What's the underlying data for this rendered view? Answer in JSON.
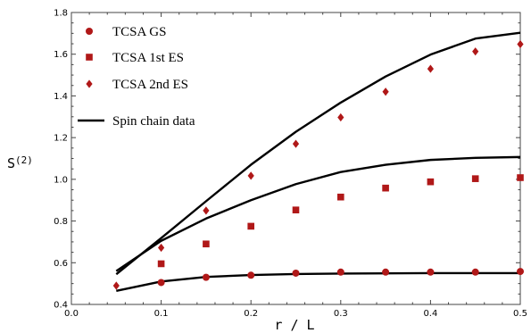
{
  "chart_data": {
    "type": "scatter",
    "xlabel": "r / L",
    "ylabel": "S",
    "ylabel_superscript": "(2)",
    "xlim": [
      0.0,
      0.5
    ],
    "ylim": [
      0.4,
      1.8
    ],
    "xticks": [
      "0.0",
      "0.1",
      "0.2",
      "0.3",
      "0.4",
      "0.5"
    ],
    "yticks": [
      "0.4",
      "0.6",
      "0.8",
      "1.0",
      "1.2",
      "1.4",
      "1.6",
      "1.8"
    ],
    "grid": false,
    "legend_position": "top-left",
    "colors": {
      "marker": "#b01818",
      "line": "#000000"
    },
    "series": [
      {
        "name": "TCSA GS",
        "kind": "markers",
        "marker": "circle",
        "x": [
          0.1,
          0.15,
          0.2,
          0.25,
          0.3,
          0.35,
          0.4,
          0.45,
          0.5
        ],
        "y": [
          0.505,
          0.53,
          0.54,
          0.55,
          0.555,
          0.555,
          0.555,
          0.555,
          0.558
        ]
      },
      {
        "name": "TCSA 1st ES",
        "kind": "markers",
        "marker": "square",
        "x": [
          0.1,
          0.15,
          0.2,
          0.25,
          0.3,
          0.35,
          0.4,
          0.45,
          0.5
        ],
        "y": [
          0.595,
          0.69,
          0.775,
          0.853,
          0.915,
          0.958,
          0.988,
          1.003,
          1.008
        ]
      },
      {
        "name": "TCSA 2nd ES",
        "kind": "markers",
        "marker": "diamond",
        "x": [
          0.05,
          0.1,
          0.15,
          0.2,
          0.25,
          0.3,
          0.35,
          0.4,
          0.45,
          0.5
        ],
        "y": [
          0.49,
          0.672,
          0.85,
          1.017,
          1.17,
          1.297,
          1.42,
          1.53,
          1.613,
          1.648
        ]
      },
      {
        "name": "Spin chain data",
        "kind": "lines",
        "lines": [
          {
            "x": [
              0.05,
              0.1,
              0.15,
              0.2,
              0.25,
              0.3,
              0.35,
              0.4,
              0.45,
              0.5
            ],
            "y": [
              0.465,
              0.51,
              0.532,
              0.541,
              0.546,
              0.548,
              0.549,
              0.55,
              0.55,
              0.55
            ]
          },
          {
            "x": [
              0.05,
              0.1,
              0.15,
              0.2,
              0.25,
              0.3,
              0.35,
              0.4,
              0.45,
              0.5
            ],
            "y": [
              0.56,
              0.705,
              0.812,
              0.9,
              0.977,
              1.035,
              1.07,
              1.093,
              1.103,
              1.107
            ]
          },
          {
            "x": [
              0.05,
              0.1,
              0.15,
              0.2,
              0.25,
              0.3,
              0.35,
              0.4,
              0.45,
              0.5
            ],
            "y": [
              0.545,
              0.718,
              0.895,
              1.07,
              1.228,
              1.368,
              1.493,
              1.598,
              1.675,
              1.703
            ]
          }
        ]
      }
    ]
  }
}
